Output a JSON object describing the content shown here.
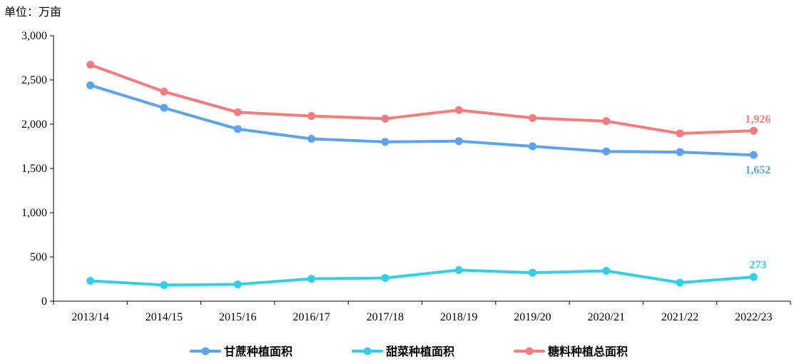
{
  "chart_data": {
    "type": "line",
    "unit_label": "单位：万亩",
    "categories": [
      "2013/14",
      "2014/15",
      "2015/16",
      "2016/17",
      "2017/18",
      "2018/19",
      "2019/20",
      "2020/21",
      "2021/22",
      "2022/23"
    ],
    "ylim": [
      0,
      3000
    ],
    "yticks": [
      0,
      500,
      1000,
      1500,
      2000,
      2500,
      3000
    ],
    "ytick_labels": [
      "0",
      "500",
      "1,000",
      "1,500",
      "2,000",
      "2,500",
      "3,000"
    ],
    "grid": false,
    "legend_position": "bottom",
    "series": [
      {
        "name": "甘蔗种植面积",
        "color": "#5ba3ec",
        "values": [
          2440,
          2185,
          1945,
          1835,
          1800,
          1808,
          1750,
          1692,
          1685,
          1652
        ],
        "end_label": "1,652"
      },
      {
        "name": "甜菜种植面积",
        "color": "#33cfe6",
        "values": [
          230,
          182,
          190,
          253,
          262,
          352,
          322,
          343,
          210,
          273
        ],
        "end_label": "273"
      },
      {
        "name": "糖料种植总面积",
        "color": "#f47c7c",
        "values": [
          2672,
          2368,
          2135,
          2093,
          2062,
          2160,
          2070,
          2035,
          1895,
          1926
        ],
        "end_label": "1,926"
      }
    ]
  }
}
